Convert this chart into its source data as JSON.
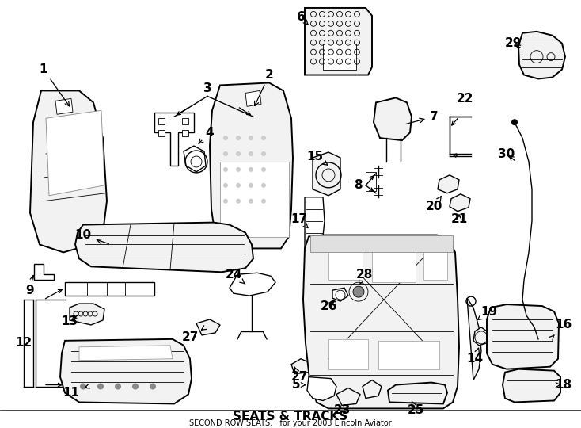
{
  "title": "SEATS & TRACKS",
  "subtitle": "SECOND ROW SEATS.",
  "vehicle": "for your 2003 Lincoln Aviator",
  "bg": "#ffffff",
  "fig_w": 7.34,
  "fig_h": 5.4,
  "dpi": 100
}
